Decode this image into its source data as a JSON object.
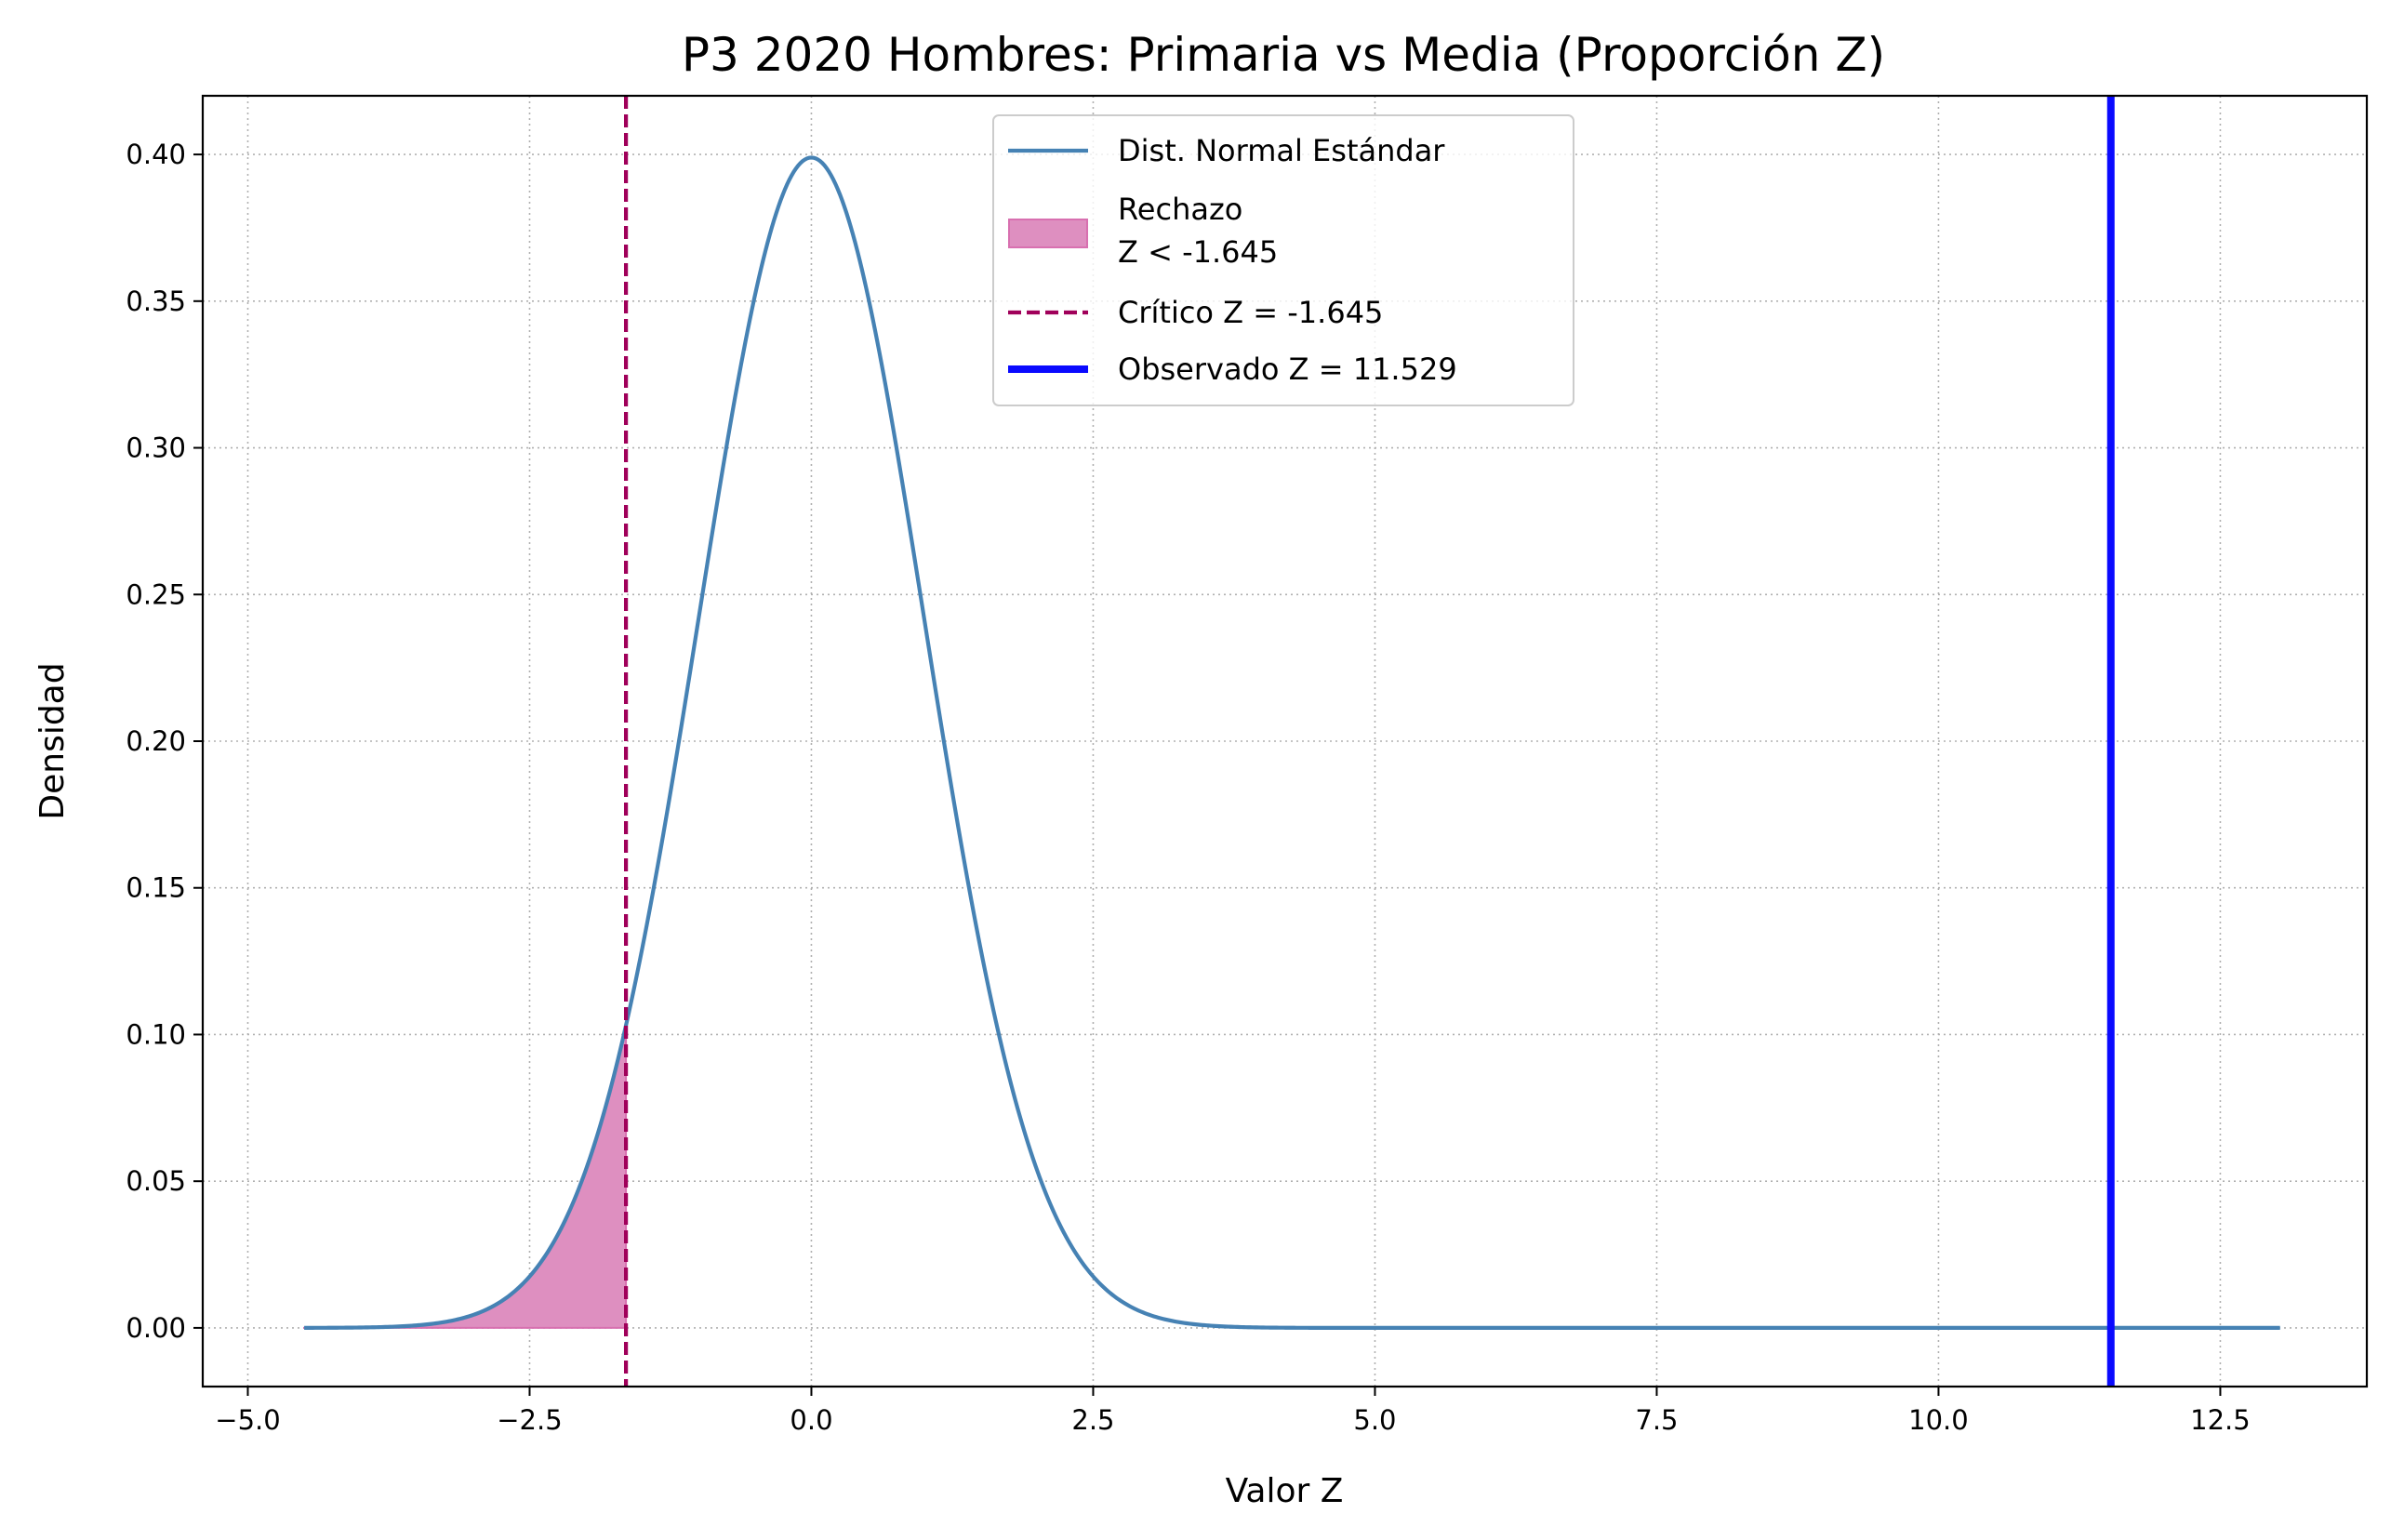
{
  "chart_data": {
    "type": "line",
    "title": "P3 2020 Hombres: Primaria vs Media (Proporción Z)",
    "xlabel": "Valor Z",
    "ylabel": "Densidad",
    "xlim": [
      -5.4,
      13.8
    ],
    "ylim": [
      -0.02,
      0.42
    ],
    "x_ticks": [
      -5.0,
      -2.5,
      0.0,
      2.5,
      5.0,
      7.5,
      10.0,
      12.5
    ],
    "x_tick_labels": [
      "−5.0",
      "−2.5",
      "0.0",
      "2.5",
      "5.0",
      "7.5",
      "10.0",
      "12.5"
    ],
    "y_ticks": [
      0.0,
      0.05,
      0.1,
      0.15,
      0.2,
      0.25,
      0.3,
      0.35,
      0.4
    ],
    "y_tick_labels": [
      "0.00",
      "0.05",
      "0.10",
      "0.15",
      "0.20",
      "0.25",
      "0.30",
      "0.35",
      "0.40"
    ],
    "grid": true,
    "legend_position": "top-center",
    "curve": {
      "name": "Dist. Normal Estándar",
      "distribution": "normal",
      "mean": 0,
      "std": 1,
      "x_range": [
        -4.5,
        13.03
      ],
      "color": "#4682b4"
    },
    "rejection_region": {
      "name_line1": "Rechazo",
      "name_line2": "Z < -1.645",
      "x_from": -4.5,
      "x_to": -1.645,
      "fill_color": "#de8fc0",
      "edge_color": "#d870b0"
    },
    "critical_line": {
      "name": "Crítico Z = -1.645",
      "x": -1.645,
      "color": "#a0005a"
    },
    "observed_line": {
      "name": "Observado Z = 11.529",
      "x": 11.529,
      "color": "#0a0aff"
    }
  }
}
